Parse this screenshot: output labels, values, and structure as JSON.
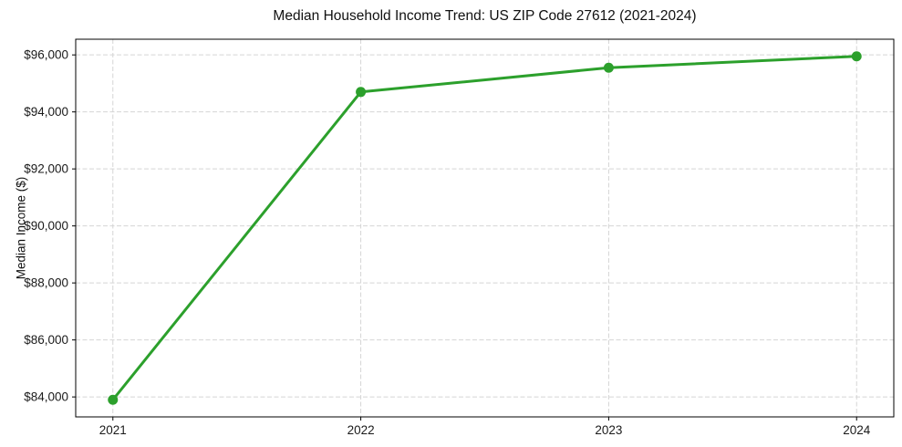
{
  "figure": {
    "background": "#ffffff"
  },
  "chart_data": {
    "type": "line",
    "title": "Median Household Income Trend: US ZIP Code 27612 (2021-2024)",
    "xlabel": "",
    "ylabel": "Median Income ($)",
    "x": [
      2021,
      2022,
      2023,
      2024
    ],
    "x_tick_labels": [
      "2021",
      "2022",
      "2023",
      "2024"
    ],
    "series": [
      {
        "name": "Median Household Income",
        "values": [
          83900,
          94700,
          95550,
          95950
        ]
      }
    ],
    "yticks": [
      84000,
      86000,
      88000,
      90000,
      92000,
      94000,
      96000
    ],
    "y_tick_labels": [
      "$84,000",
      "$86,000",
      "$88,000",
      "$90,000",
      "$92,000",
      "$94,000",
      "$96,000"
    ],
    "xlim": [
      2020.85,
      2024.15
    ],
    "ylim": [
      83300,
      96550
    ],
    "grid": true,
    "legend": "none",
    "line_color": "#2ca02c",
    "marker": "circle",
    "marker_radius": 5.5,
    "line_width": 3,
    "grid_color": "#d5d5d5",
    "spine_color": "#000000"
  }
}
